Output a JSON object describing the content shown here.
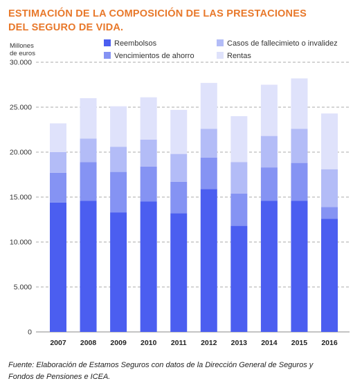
{
  "title_lines": [
    "ESTIMACIÓN DE LA COMPOSICIÓN DE LAS PRESTACIONES",
    "DEL SEGURO DE VIDA."
  ],
  "source_lines": [
    "Fuente: Elaboración de Estamos Seguros con datos de la Dirección General de Seguros y",
    "Fondos de Pensiones e ICEA."
  ],
  "chart_data": {
    "type": "bar",
    "stacked": true,
    "ylabel": "Millones de euros",
    "ylabel_lines": [
      "Millones",
      "de euros"
    ],
    "ylim": [
      0,
      30000
    ],
    "yticks": [
      0,
      5000,
      10000,
      15000,
      20000,
      25000,
      30000
    ],
    "ytick_labels": [
      "0",
      "5.000",
      "10.000",
      "15.000",
      "20.000",
      "25.000",
      "30.000"
    ],
    "grid": "horizontal dashed",
    "legend_position": "top",
    "categories": [
      "2007",
      "2008",
      "2009",
      "2010",
      "2011",
      "2012",
      "2013",
      "2014",
      "2015",
      "2016"
    ],
    "series": [
      {
        "name": "Reembolsos",
        "color": "#4b5ef0",
        "values": [
          14400,
          14600,
          13300,
          14500,
          13200,
          15900,
          11800,
          14600,
          14600,
          12600
        ]
      },
      {
        "name": "Vencimientos de ahorro",
        "color": "#8593f3",
        "values": [
          3300,
          4300,
          4500,
          3900,
          3500,
          3500,
          3600,
          3700,
          4200,
          1300
        ]
      },
      {
        "name": "Casos de fallecimieto o invalidez",
        "color": "#b3bcf7",
        "values": [
          2300,
          2600,
          2800,
          3000,
          3100,
          3200,
          3500,
          3500,
          3800,
          4200
        ]
      },
      {
        "name": "Rentas",
        "color": "#dfe2fb",
        "values": [
          3200,
          4500,
          4500,
          4700,
          4900,
          5100,
          5100,
          5700,
          5600,
          6200
        ]
      }
    ]
  }
}
